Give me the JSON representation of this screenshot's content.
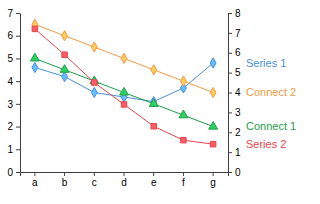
{
  "chart_data": {
    "type": "line",
    "categories": [
      "a",
      "b",
      "c",
      "d",
      "e",
      "f",
      "g"
    ],
    "ylim": [
      0,
      7
    ],
    "yticks": [
      0,
      1,
      2,
      3,
      4,
      5,
      6,
      7
    ],
    "y2lim": [
      0,
      8
    ],
    "y2ticks": [
      0,
      1,
      2,
      3,
      4,
      5,
      6,
      7,
      8
    ],
    "series": [
      {
        "name": "Series 1",
        "color": "#4a8fd8",
        "marker": "diamond",
        "values": [
          4.6,
          4.2,
          3.5,
          3.3,
          3.1,
          3.7,
          4.8
        ]
      },
      {
        "name": "Connect 2",
        "color": "#f39a45",
        "marker": "diamond",
        "values": [
          6.5,
          6.0,
          5.5,
          5.0,
          4.5,
          4.0,
          3.5
        ]
      },
      {
        "name": "Connect 1",
        "color": "#1f9e4a",
        "marker": "triangle",
        "values": [
          5.0,
          4.5,
          4.0,
          3.5,
          3.0,
          2.5,
          2.0
        ]
      },
      {
        "name": "Series 2",
        "color": "#e5454d",
        "marker": "square",
        "axis": "y2",
        "values": [
          7.2,
          5.9,
          4.5,
          3.4,
          2.3,
          1.6,
          1.4
        ]
      }
    ]
  }
}
